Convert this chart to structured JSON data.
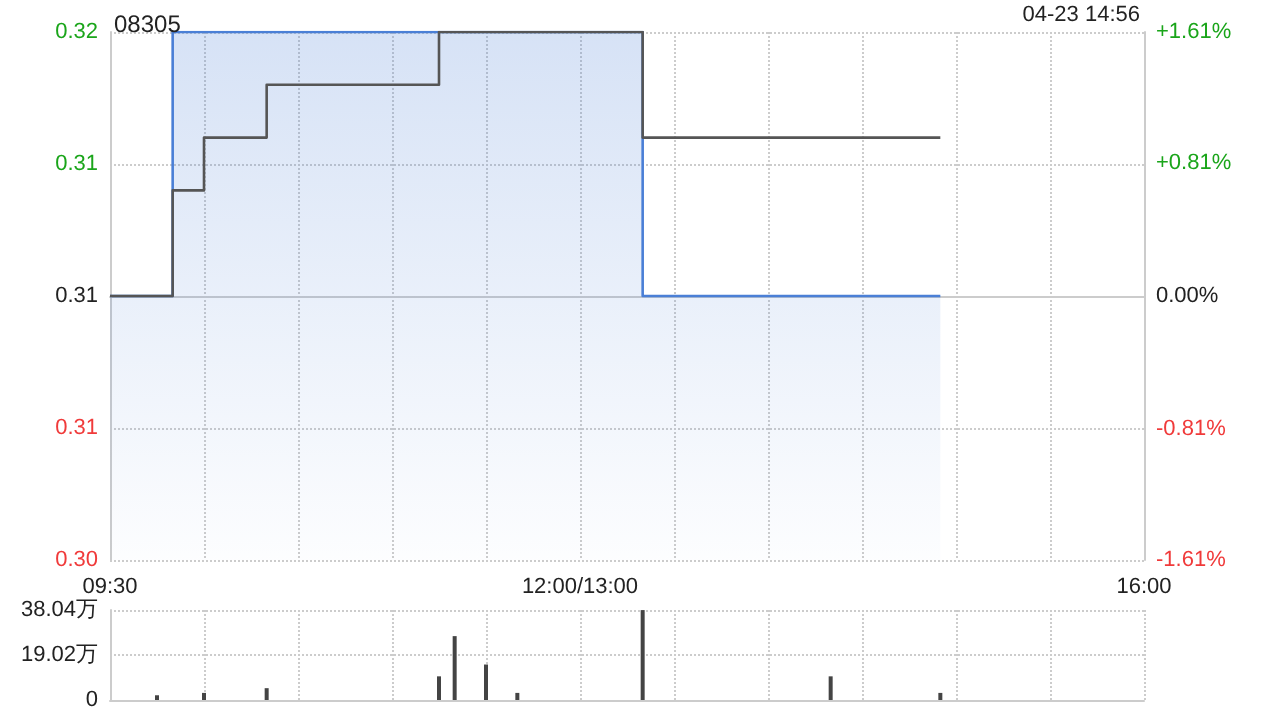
{
  "chart_data": [
    {
      "type": "step",
      "title": "08305",
      "annotations": [
        "04-23 14:56"
      ],
      "categories": [
        "09:30",
        null,
        null,
        null,
        null,
        null,
        null,
        null,
        null,
        null,
        null,
        null,
        null,
        null,
        null,
        null,
        null,
        null,
        null,
        null,
        null,
        null,
        null,
        null,
        null,
        null,
        null,
        null,
        null,
        null,
        "12:00/13:00",
        null,
        null,
        null,
        null,
        null,
        null,
        null,
        null,
        null,
        null,
        null,
        null,
        null,
        null,
        null,
        null,
        null,
        null,
        null,
        null,
        null,
        null,
        null,
        null,
        null,
        null,
        null,
        null,
        null,
        null,
        null,
        null,
        null,
        null,
        null,
        "16:00"
      ],
      "ylim": [
        0.305,
        0.315
      ],
      "yticks": [
        {
          "value": 0.305,
          "label": "0.30"
        },
        {
          "value": 0.3075,
          "label": "0.31"
        },
        {
          "value": 0.31,
          "label": "0.31"
        },
        {
          "value": 0.3125,
          "label": "0.31"
        },
        {
          "value": 0.315,
          "label": "0.32"
        }
      ],
      "y2lim": [
        -1.61,
        1.61
      ],
      "y2ticks": [
        {
          "value": -1.61,
          "label": "-1.61%"
        },
        {
          "value": -0.81,
          "label": "-0.81%"
        },
        {
          "value": 0,
          "label": "0.00%"
        },
        {
          "value": 0.81,
          "label": "+0.81%"
        },
        {
          "value": 1.61,
          "label": "+1.61%"
        }
      ],
      "grid": true,
      "marker": "none",
      "series": [
        {
          "type": "area",
          "color": "#4a7fd6",
          "values": [
            0.31,
            0.31,
            0.31,
            0.31,
            0.315,
            0.315,
            0.315,
            0.315,
            0.315,
            0.315,
            0.315,
            0.315,
            0.315,
            0.315,
            0.315,
            0.315,
            0.315,
            0.315,
            0.315,
            0.315,
            0.315,
            0.315,
            0.315,
            0.315,
            0.315,
            0.315,
            0.315,
            0.315,
            0.315,
            0.315,
            0.315,
            0.315,
            0.315,
            0.315,
            0.31,
            0.31,
            0.31,
            0.31,
            0.31,
            0.31,
            0.31,
            0.31,
            0.31,
            0.31,
            0.31,
            0.31,
            0.31,
            0.31,
            0.31,
            0.31,
            0.31,
            0.31,
            0.31,
            0.31,
            null,
            null,
            null,
            null,
            null,
            null,
            null,
            null,
            null,
            null,
            null,
            null,
            null
          ]
        },
        {
          "type": "step",
          "color": "#555555",
          "values": [
            0.31,
            0.31,
            0.31,
            0.31,
            0.312,
            0.312,
            0.313,
            0.313,
            0.313,
            0.313,
            0.314,
            0.314,
            0.314,
            0.314,
            0.314,
            0.314,
            0.314,
            0.314,
            0.314,
            0.314,
            0.314,
            0.315,
            0.315,
            0.315,
            0.315,
            0.315,
            0.315,
            0.315,
            0.315,
            0.315,
            0.315,
            0.315,
            0.315,
            0.315,
            0.313,
            0.313,
            0.313,
            0.313,
            0.313,
            0.313,
            0.313,
            0.313,
            0.313,
            0.313,
            0.313,
            0.313,
            0.313,
            0.313,
            0.313,
            0.313,
            0.313,
            0.313,
            0.313,
            0.313,
            null,
            null,
            null,
            null,
            null,
            null,
            null,
            null,
            null,
            null,
            null,
            null,
            null
          ]
        }
      ]
    },
    {
      "type": "bar",
      "color": "#444444",
      "tick_labels": "y",
      "grid": true,
      "categories": [
        null,
        null,
        null,
        null,
        null,
        null,
        null,
        null,
        null,
        null,
        null,
        null,
        null,
        null,
        null,
        null,
        null,
        null,
        null,
        null,
        null,
        null,
        null,
        null,
        null,
        null,
        null,
        null,
        null,
        null,
        null,
        null,
        null,
        null,
        null,
        null,
        null,
        null,
        null,
        null,
        null,
        null,
        null,
        null,
        null,
        null,
        null,
        null,
        null,
        null,
        null,
        null,
        null,
        null,
        null,
        null,
        null,
        null,
        null,
        null,
        null,
        null,
        null,
        null,
        null,
        null,
        null
      ],
      "ylim": [
        0,
        38.04
      ],
      "yticks": [
        0,
        {
          "value": 19.02,
          "label": "19.02万"
        },
        {
          "value": 38.04,
          "label": "38.04万"
        }
      ],
      "values": [
        null,
        null,
        null,
        2,
        null,
        null,
        3,
        null,
        null,
        null,
        5,
        null,
        null,
        null,
        null,
        null,
        null,
        null,
        null,
        null,
        null,
        10,
        27,
        null,
        15,
        null,
        3,
        null,
        null,
        null,
        null,
        null,
        null,
        null,
        38,
        null,
        null,
        null,
        null,
        null,
        null,
        null,
        null,
        null,
        null,
        null,
        10,
        null,
        null,
        null,
        null,
        null,
        null,
        3,
        null,
        null,
        null,
        null,
        null,
        null,
        null,
        null,
        null,
        null,
        null,
        null,
        null
      ]
    }
  ]
}
